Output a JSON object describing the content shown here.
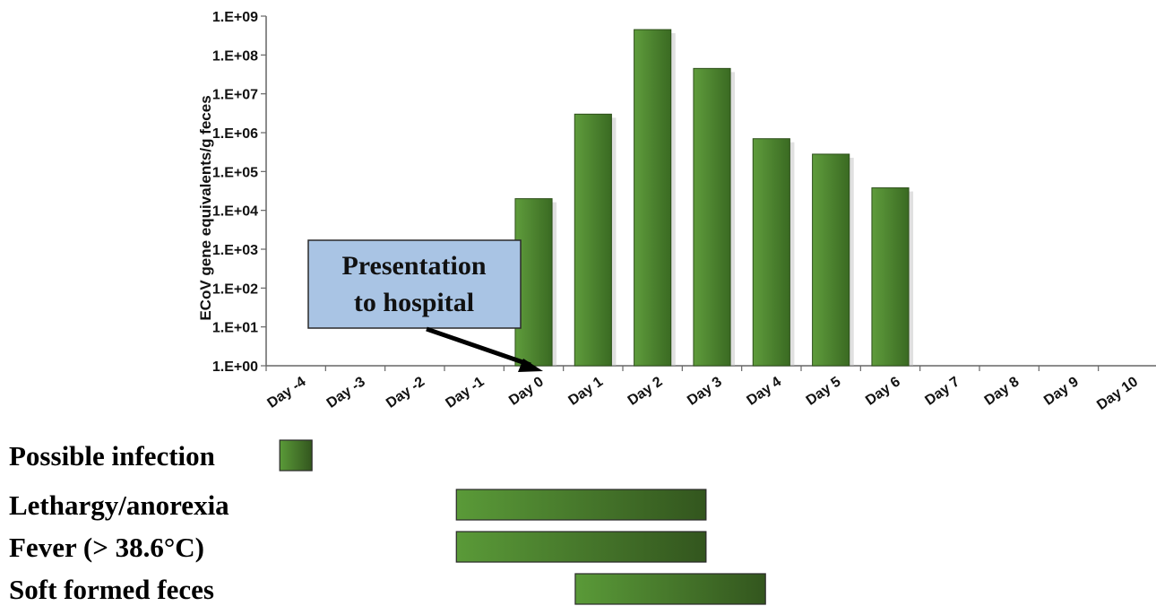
{
  "chart_data": {
    "type": "bar",
    "ylabel": "ECoV gene equivalents/g feces",
    "yscale": "log",
    "ylim": [
      1,
      1000000000
    ],
    "yticks": [
      "1.E+00",
      "1.E+01",
      "1.E+02",
      "1.E+03",
      "1.E+04",
      "1.E+05",
      "1.E+06",
      "1.E+07",
      "1.E+08",
      "1.E+09"
    ],
    "categories": [
      "Day -4",
      "Day -3",
      "Day -2",
      "Day -1",
      "Day 0",
      "Day 1",
      "Day 2",
      "Day 3",
      "Day 4",
      "Day 5",
      "Day 6",
      "Day 7",
      "Day 8",
      "Day 9",
      "Day 10"
    ],
    "values": [
      null,
      null,
      null,
      null,
      20000,
      3000000,
      450000000,
      45000000,
      700000,
      280000,
      38000,
      null,
      null,
      null,
      null
    ],
    "bar_color": "#4e8a30",
    "annotation": {
      "lines": [
        "Presentation",
        "to hospital"
      ],
      "points_to": "Day 0",
      "fill": "#a9c4e4"
    },
    "symptoms": [
      {
        "label": "Possible infection",
        "start": "Day -4",
        "end": "Day -4"
      },
      {
        "label": "Lethargy/anorexia",
        "start": "Day -1",
        "end": "Day 3"
      },
      {
        "label": "Fever (> 38.6°C)",
        "start": "Day -1",
        "end": "Day 3"
      },
      {
        "label": "Soft formed feces",
        "start": "Day 1",
        "end": "Day 4"
      }
    ]
  }
}
